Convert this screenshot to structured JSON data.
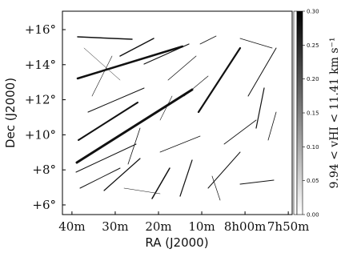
{
  "chart_data": {
    "type": "image",
    "xlabel": "RA (J2000)",
    "ylabel": "Dec (J2000)",
    "xlim": [
      522.2,
      469.1
    ],
    "xticks": [
      {
        "value": 520,
        "label": "40m"
      },
      {
        "value": 510,
        "label": "30m"
      },
      {
        "value": 500,
        "label": "20m"
      },
      {
        "value": 490,
        "label": "10m"
      },
      {
        "value": 480,
        "label": "8h00m"
      },
      {
        "value": 470,
        "label": "7h50m"
      }
    ],
    "ylim": [
      5.45,
      17.05
    ],
    "yticks": [
      {
        "value": 6,
        "label": "+6°"
      },
      {
        "value": 8,
        "label": "+8°"
      },
      {
        "value": 10,
        "label": "+10°"
      },
      {
        "value": 12,
        "label": "+12°"
      },
      {
        "value": 14,
        "label": "+14°"
      },
      {
        "value": 16,
        "label": "+16°"
      }
    ],
    "colorbar": {
      "label": "9.94 < vHI < 11.41 km s⁻¹",
      "lim": [
        0,
        0.3
      ],
      "colors": [
        "#ffffff",
        "#000000"
      ],
      "ticks": [
        {
          "value": 0,
          "label": "0.00"
        },
        {
          "value": 0.05,
          "label": "0.05"
        },
        {
          "value": 0.1,
          "label": "0.10"
        },
        {
          "value": 0.15,
          "label": "0.15"
        },
        {
          "value": 0.2,
          "label": "0.20"
        },
        {
          "value": 0.25,
          "label": "0.25"
        },
        {
          "value": 0.3,
          "label": "0.30"
        }
      ]
    }
  }
}
